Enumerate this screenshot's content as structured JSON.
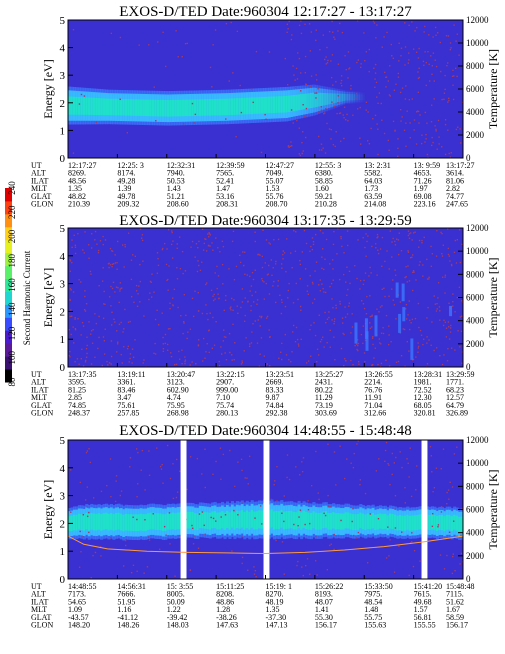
{
  "colors": {
    "background": "#3a2fd0",
    "band_core": "#1fe0c8",
    "band_edge": "#38b8ff",
    "band_outer": "#3a78ff",
    "noise": "#a03a6a",
    "temp_line": "#ff9a40"
  },
  "colorbar": {
    "label": "Second Harmonic Current",
    "ticks": [
      "80",
      "100",
      "120",
      "140",
      "160",
      "180",
      "200",
      "220",
      "240"
    ]
  },
  "chart_data": [
    {
      "type": "heatmap",
      "title": "EXOS-D/TED   Date:960304   12:17:27 - 13:17:27",
      "ylabel": "Energy [eV]",
      "y2label": "Temperature [K]",
      "ylim": [
        0,
        5
      ],
      "y2lim": [
        0,
        12000
      ],
      "yticks": [
        "0",
        "1",
        "2",
        "3",
        "4",
        "5"
      ],
      "y2ticks": [
        "0",
        "2000",
        "4000",
        "6000",
        "8000",
        "10000",
        "12000"
      ],
      "band": {
        "x": [
          0,
          0.1,
          0.25,
          0.4,
          0.55,
          0.62,
          0.7,
          1.0
        ],
        "center": [
          1.9,
          1.85,
          1.8,
          1.85,
          1.95,
          2.1,
          2.2,
          2.2
        ],
        "half_width": [
          0.55,
          0.5,
          0.5,
          0.5,
          0.5,
          0.45,
          0.2,
          0.0
        ],
        "fade_start": 0.55,
        "fade_end": 0.75
      },
      "temperature": null,
      "gaps": [],
      "table": {
        "labels": [
          "UT",
          "ALT",
          "ILAT",
          "MLT",
          "GLAT",
          "GLON"
        ],
        "columns": [
          [
            "12:17:27",
            "8269.",
            "48.56",
            "1.35",
            "48.82",
            "210.39"
          ],
          [
            "12:25: 3",
            "8174.",
            "49.28",
            "1.39",
            "49.78",
            "209.32"
          ],
          [
            "12:32:31",
            "7940.",
            "50.53",
            "1.43",
            "51.21",
            "208.60"
          ],
          [
            "12:39:59",
            "7565.",
            "52.41",
            "1.47",
            "53.16",
            "208.31"
          ],
          [
            "12:47:27",
            "7049.",
            "55.07",
            "1.53",
            "55.76",
            "208.70"
          ],
          [
            "12:55: 3",
            "6380.",
            "58.85",
            "1.60",
            "59.21",
            "210.28"
          ],
          [
            "13: 2:31",
            "5582.",
            "64.03",
            "1.73",
            "63.59",
            "214.08"
          ],
          [
            "13: 9:59",
            "4653.",
            "71.26",
            "1.97",
            "69.08",
            "223.16"
          ],
          [
            "13:17:27",
            "3614.",
            "81.06",
            "2.82",
            "74.77",
            "247.65"
          ]
        ]
      }
    },
    {
      "type": "heatmap",
      "title": "EXOS-D/TED   Date:960304   13:17:35 - 13:29:59",
      "ylabel": "Energy [eV]",
      "y2label": "Temperature [K]",
      "ylim": [
        0,
        5
      ],
      "y2lim": [
        0,
        12000
      ],
      "yticks": [
        "0",
        "1",
        "2",
        "3",
        "4",
        "5"
      ],
      "y2ticks": [
        "0",
        "2000",
        "4000",
        "6000",
        "8000",
        "10000",
        "12000"
      ],
      "band": null,
      "temperature": null,
      "gaps": [],
      "table": {
        "labels": [
          "UT",
          "ALT",
          "ILAT",
          "MLT",
          "GLAT",
          "GLON"
        ],
        "columns": [
          [
            "13:17:35",
            "3595.",
            "81.25",
            "2.85",
            "74.85",
            "248.37"
          ],
          [
            "13:19:11",
            "3361.",
            "83.46",
            "3.47",
            "75.61",
            "257.85"
          ],
          [
            "13:20:47",
            "3123.",
            "602.90",
            "4.74",
            "75.95",
            "268.98"
          ],
          [
            "13:22:15",
            "2907.",
            "999.00",
            "7.10",
            "75.74",
            "280.13"
          ],
          [
            "13:23:51",
            "2669.",
            "83.33",
            "9.87",
            "74.84",
            "292.38"
          ],
          [
            "13:25:27",
            "2431.",
            "80.22",
            "11.29",
            "73.19",
            "303.69"
          ],
          [
            "13:26:55",
            "2214.",
            "76.76",
            "11.91",
            "71.04",
            "312.66"
          ],
          [
            "13:28:31",
            "1981.",
            "72.52",
            "12.30",
            "68.05",
            "320.81"
          ],
          [
            "13:29:59",
            "1771.",
            "68.23",
            "12.57",
            "64.79",
            "326.89"
          ]
        ]
      }
    },
    {
      "type": "heatmap",
      "title": "EXOS-D/TED   Date:960304   14:48:55 - 15:48:48",
      "ylabel": "Energy [eV]",
      "y2label": "Temperature [K]",
      "ylim": [
        0,
        5
      ],
      "y2lim": [
        0,
        12000
      ],
      "yticks": [
        "0",
        "1",
        "2",
        "3",
        "4",
        "5"
      ],
      "y2ticks": [
        "0",
        "2000",
        "4000",
        "6000",
        "8000",
        "10000",
        "12000"
      ],
      "band": {
        "x": [
          0,
          0.05,
          0.2,
          0.35,
          0.5,
          0.65,
          0.8,
          1.0
        ],
        "center": [
          2.0,
          2.05,
          2.05,
          2.1,
          2.15,
          2.1,
          2.05,
          2.0
        ],
        "half_width": [
          0.45,
          0.5,
          0.5,
          0.5,
          0.55,
          0.5,
          0.45,
          0.45
        ],
        "fade_start": 2,
        "fade_end": 2
      },
      "temperature": {
        "x": [
          0,
          0.04,
          0.1,
          0.2,
          0.3,
          0.4,
          0.5,
          0.6,
          0.7,
          0.8,
          0.9,
          1.0
        ],
        "y": [
          3700,
          3000,
          2600,
          2400,
          2300,
          2250,
          2200,
          2300,
          2500,
          2800,
          3200,
          3700
        ]
      },
      "gaps": [
        [
          0.285,
          0.3
        ],
        [
          0.495,
          0.51
        ],
        [
          0.895,
          0.91
        ]
      ],
      "table": {
        "labels": [
          "UT",
          "ALT",
          "ILAT",
          "MLT",
          "GLAT",
          "GLON"
        ],
        "columns": [
          [
            "14:48:55",
            "7173.",
            "54.65",
            "1.09",
            "-43.57",
            "148.20"
          ],
          [
            "14:56:31",
            "7666.",
            "51.95",
            "1.16",
            "-41.12",
            "148.26"
          ],
          [
            "15: 3:55",
            "8005.",
            "50.09",
            "1.22",
            "-39.42",
            "148.03"
          ],
          [
            "15:11:25",
            "8208.",
            "48.86",
            "1.28",
            "-38.26",
            "147.63"
          ],
          [
            "15:19: 1",
            "8270.",
            "48.19",
            "1.35",
            "-37.30",
            "147.13"
          ],
          [
            "15:26:22",
            "8193.",
            "48.07",
            "1.41",
            "55.30",
            "156.17"
          ],
          [
            "15:33:50",
            "7975.",
            "48.54",
            "1.48",
            "55.75",
            "155.63"
          ],
          [
            "15:41:20",
            "7615.",
            "49.68",
            "1.57",
            "56.81",
            "155.55"
          ],
          [
            "15:48:48",
            "7115.",
            "51.62",
            "1.67",
            "58.59",
            "156.17"
          ]
        ]
      }
    }
  ]
}
